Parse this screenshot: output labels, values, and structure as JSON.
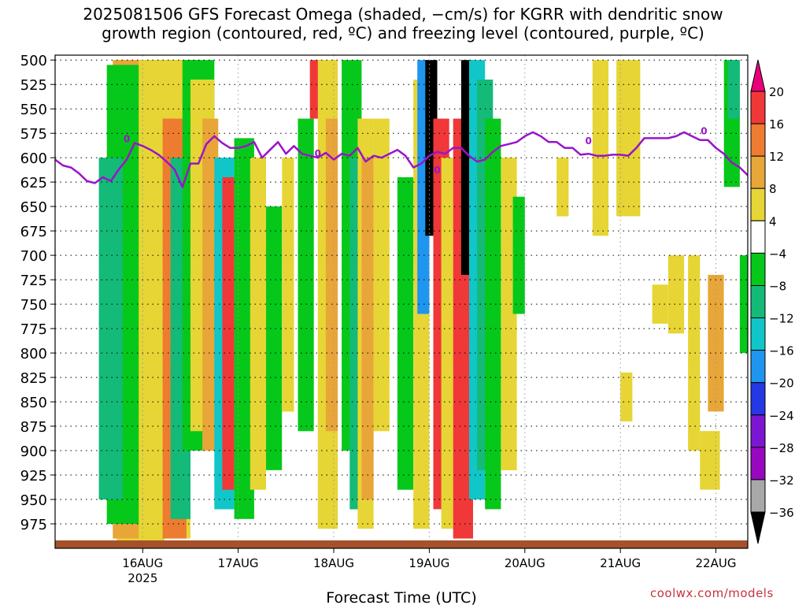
{
  "chart_data": {
    "type": "heatmap",
    "title_line1": "2025081506 GFS Forecast Omega (shaded, −cm/s) for KGRR with dendritic snow",
    "title_line2": "growth region (contoured, red, ºC) and freezing level (contoured, purple, ºC)",
    "xlabel": "Forecast Time (UTC)",
    "ylabel": "",
    "credit": "coolwx.com/models",
    "y_ticks": [
      500,
      525,
      550,
      575,
      600,
      625,
      650,
      675,
      700,
      725,
      750,
      775,
      800,
      825,
      850,
      875,
      900,
      925,
      950,
      975
    ],
    "ylim": [
      1000,
      495
    ],
    "xlim_hours": [
      -16,
      158
    ],
    "x_ticks": [
      {
        "label": "16AUG",
        "hour": 6
      },
      {
        "label": "17AUG",
        "hour": 30
      },
      {
        "label": "18AUG",
        "hour": 54
      },
      {
        "label": "19AUG",
        "hour": 78
      },
      {
        "label": "20AUG",
        "hour": 102
      },
      {
        "label": "21AUG",
        "hour": 126
      },
      {
        "label": "22AUG",
        "hour": 150
      }
    ],
    "x_year_label": "2025",
    "grid": true,
    "colorbar_labels": [
      "20",
      "16",
      "12",
      "8",
      "4",
      "−4",
      "−8",
      "−12",
      "−16",
      "−20",
      "−24",
      "−28",
      "−32",
      "−36"
    ],
    "colorbar_colors": [
      "#e8007a",
      "#f03838",
      "#ee7c30",
      "#e8a638",
      "#e6d534",
      "#ffffff",
      "#06c81a",
      "#14ba78",
      "#10c6c8",
      "#1e96f0",
      "#2438e6",
      "#7c16d2",
      "#9808c0",
      "#a8a8a8",
      "#000000"
    ],
    "freezing_level": {
      "color": "#9a14c8",
      "label": "0",
      "hours": [
        -16,
        -14,
        -12,
        -10,
        -8,
        -6,
        -4,
        -2,
        0,
        2,
        4,
        6,
        8,
        10,
        12,
        14,
        16,
        18,
        20,
        22,
        24,
        26,
        28,
        30,
        32,
        34,
        36,
        38,
        40,
        42,
        44,
        46,
        48,
        50,
        52,
        54,
        56,
        58,
        60,
        62,
        64,
        66,
        68,
        70,
        72,
        74,
        76,
        78,
        80,
        82,
        84,
        86,
        88,
        90,
        92,
        94,
        96,
        98,
        100,
        102,
        104,
        106,
        108,
        110,
        112,
        114,
        116,
        118,
        120,
        122,
        124,
        126,
        128,
        130,
        132,
        134,
        136,
        138,
        140,
        142,
        144,
        146,
        148,
        150,
        152,
        154,
        156,
        158
      ],
      "values": [
        602,
        608,
        610,
        616,
        624,
        626,
        620,
        624,
        612,
        602,
        585,
        588,
        592,
        597,
        604,
        612,
        630,
        606,
        606,
        586,
        578,
        585,
        590,
        590,
        588,
        584,
        600,
        592,
        584,
        596,
        588,
        596,
        598,
        600,
        595,
        602,
        596,
        598,
        590,
        604,
        598,
        600,
        596,
        592,
        598,
        610,
        606,
        598,
        594,
        596,
        590,
        590,
        598,
        604,
        602,
        594,
        588,
        586,
        584,
        578,
        574,
        578,
        584,
        584,
        590,
        590,
        597,
        596,
        598,
        598,
        597,
        597,
        598,
        590,
        580,
        580,
        580,
        580,
        578,
        574,
        578,
        582,
        582,
        590,
        596,
        605,
        610,
        618
      ]
    },
    "shading_units": "−cm/s"
  }
}
